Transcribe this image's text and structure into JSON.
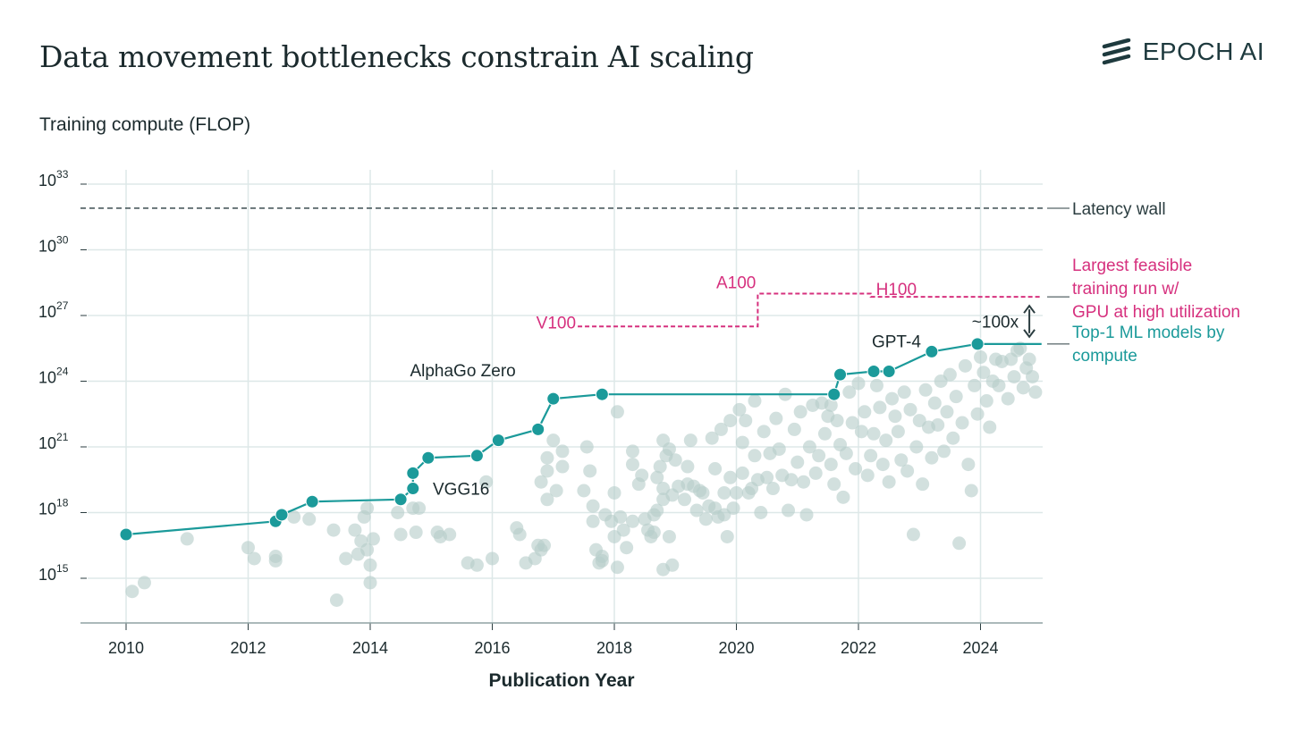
{
  "header": {
    "title": "Data movement bottlenecks constrain AI scaling",
    "brand": "EPOCH AI"
  },
  "colors": {
    "teal": "#1b9a9a",
    "scatter": "#b6cdc9",
    "magenta": "#d6307e",
    "dark": "#2b3d40",
    "grid": "#dde8e8"
  },
  "chart_data": {
    "type": "scatter",
    "title": "Data movement bottlenecks constrain AI scaling",
    "ylabel": "Training compute (FLOP)",
    "xlabel": "Publication Year",
    "x_ticks": [
      2010,
      2012,
      2014,
      2016,
      2018,
      2020,
      2022,
      2024
    ],
    "x_tick_labels": [
      "2010",
      "2012",
      "2014",
      "2016",
      "2018",
      "2020",
      "2022",
      "2024"
    ],
    "xlim": [
      2009.3,
      2025.0
    ],
    "y_log10_ticks": [
      15,
      18,
      21,
      24,
      27,
      30,
      33
    ],
    "y_tick_base": "10",
    "ylim_log10": [
      13,
      34
    ],
    "reference_lines": [
      {
        "name": "Latency wall",
        "label": "Latency wall",
        "y_log10": 31.9,
        "style": "dashed"
      }
    ],
    "gpu_lines": {
      "label_lines": [
        "Largest feasible",
        " training run w/",
        "GPU at high utilization"
      ],
      "segments": [
        {
          "name": "V100",
          "x_start": 2017.4,
          "x_end": 2020.35,
          "y_log10": 26.5
        },
        {
          "name": "A100",
          "x_start": 2020.35,
          "x_end": 2022.2,
          "y_log10": 28.0
        },
        {
          "name": "H100",
          "x_start": 2022.2,
          "x_end": 2025.0,
          "y_log10": 27.85
        }
      ]
    },
    "frontier_series": {
      "name": "Top-1 ML models by compute",
      "label_lines": [
        "Top-1 ML models by",
        " compute"
      ],
      "points": [
        {
          "x": 2010.0,
          "y": 17.0
        },
        {
          "x": 2012.45,
          "y": 17.6
        },
        {
          "x": 2012.55,
          "y": 17.9
        },
        {
          "x": 2013.05,
          "y": 18.5
        },
        {
          "x": 2014.5,
          "y": 18.6
        },
        {
          "x": 2014.7,
          "y": 19.1
        },
        {
          "x": 2014.7,
          "y": 19.8
        },
        {
          "x": 2014.95,
          "y": 20.5
        },
        {
          "x": 2015.75,
          "y": 20.6
        },
        {
          "x": 2016.1,
          "y": 21.3
        },
        {
          "x": 2016.75,
          "y": 21.8
        },
        {
          "x": 2017.0,
          "y": 23.2
        },
        {
          "x": 2017.8,
          "y": 23.4
        },
        {
          "x": 2021.6,
          "y": 23.4
        },
        {
          "x": 2021.7,
          "y": 24.3
        },
        {
          "x": 2022.25,
          "y": 24.45
        },
        {
          "x": 2022.5,
          "y": 24.45
        },
        {
          "x": 2023.2,
          "y": 25.35
        },
        {
          "x": 2023.95,
          "y": 25.7
        },
        {
          "x": 2025.0,
          "y": 25.7,
          "marker": false
        }
      ]
    },
    "scatter_series": {
      "name": "ML models",
      "points": [
        {
          "x": 2010.1,
          "y": 14.4
        },
        {
          "x": 2010.3,
          "y": 14.8
        },
        {
          "x": 2011.0,
          "y": 16.8
        },
        {
          "x": 2012.0,
          "y": 16.4
        },
        {
          "x": 2012.1,
          "y": 15.9
        },
        {
          "x": 2012.45,
          "y": 16.0
        },
        {
          "x": 2012.45,
          "y": 15.8
        },
        {
          "x": 2012.75,
          "y": 17.8
        },
        {
          "x": 2013.0,
          "y": 17.7
        },
        {
          "x": 2013.4,
          "y": 17.2
        },
        {
          "x": 2013.45,
          "y": 14.0
        },
        {
          "x": 2013.6,
          "y": 15.9
        },
        {
          "x": 2013.75,
          "y": 17.2
        },
        {
          "x": 2013.8,
          "y": 16.1
        },
        {
          "x": 2013.85,
          "y": 16.7
        },
        {
          "x": 2013.9,
          "y": 17.8
        },
        {
          "x": 2013.95,
          "y": 18.2
        },
        {
          "x": 2013.95,
          "y": 16.3
        },
        {
          "x": 2014.0,
          "y": 15.6
        },
        {
          "x": 2014.0,
          "y": 14.8
        },
        {
          "x": 2014.05,
          "y": 16.8
        },
        {
          "x": 2014.45,
          "y": 18.0
        },
        {
          "x": 2014.5,
          "y": 17.0
        },
        {
          "x": 2014.7,
          "y": 18.2
        },
        {
          "x": 2014.75,
          "y": 17.1
        },
        {
          "x": 2014.8,
          "y": 18.2
        },
        {
          "x": 2015.1,
          "y": 17.1
        },
        {
          "x": 2015.15,
          "y": 16.9
        },
        {
          "x": 2015.3,
          "y": 17.0
        },
        {
          "x": 2015.6,
          "y": 15.7
        },
        {
          "x": 2015.75,
          "y": 15.6
        },
        {
          "x": 2015.9,
          "y": 19.4
        },
        {
          "x": 2016.0,
          "y": 15.9
        },
        {
          "x": 2016.4,
          "y": 17.3
        },
        {
          "x": 2016.45,
          "y": 17.0
        },
        {
          "x": 2016.55,
          "y": 15.7
        },
        {
          "x": 2016.7,
          "y": 15.9
        },
        {
          "x": 2016.75,
          "y": 16.5
        },
        {
          "x": 2016.8,
          "y": 16.3
        },
        {
          "x": 2016.8,
          "y": 19.4
        },
        {
          "x": 2016.85,
          "y": 16.5
        },
        {
          "x": 2016.9,
          "y": 18.6
        },
        {
          "x": 2016.9,
          "y": 20.5
        },
        {
          "x": 2016.9,
          "y": 19.9
        },
        {
          "x": 2017.0,
          "y": 21.3
        },
        {
          "x": 2017.05,
          "y": 19.0
        },
        {
          "x": 2017.15,
          "y": 20.1
        },
        {
          "x": 2017.15,
          "y": 20.8
        },
        {
          "x": 2017.5,
          "y": 19.0
        },
        {
          "x": 2017.55,
          "y": 21.0
        },
        {
          "x": 2017.6,
          "y": 19.9
        },
        {
          "x": 2017.65,
          "y": 18.3
        },
        {
          "x": 2017.65,
          "y": 17.6
        },
        {
          "x": 2017.7,
          "y": 16.3
        },
        {
          "x": 2017.75,
          "y": 15.7
        },
        {
          "x": 2017.8,
          "y": 15.8
        },
        {
          "x": 2017.8,
          "y": 16.0
        },
        {
          "x": 2017.85,
          "y": 17.9
        },
        {
          "x": 2017.95,
          "y": 17.6
        },
        {
          "x": 2018.0,
          "y": 18.9
        },
        {
          "x": 2018.0,
          "y": 16.9
        },
        {
          "x": 2018.05,
          "y": 15.5
        },
        {
          "x": 2018.05,
          "y": 22.6
        },
        {
          "x": 2018.1,
          "y": 17.8
        },
        {
          "x": 2018.15,
          "y": 17.2
        },
        {
          "x": 2018.2,
          "y": 16.4
        },
        {
          "x": 2018.3,
          "y": 20.8
        },
        {
          "x": 2018.3,
          "y": 20.2
        },
        {
          "x": 2018.3,
          "y": 17.6
        },
        {
          "x": 2018.4,
          "y": 19.3
        },
        {
          "x": 2018.45,
          "y": 19.7
        },
        {
          "x": 2018.5,
          "y": 17.7
        },
        {
          "x": 2018.55,
          "y": 17.2
        },
        {
          "x": 2018.6,
          "y": 16.9
        },
        {
          "x": 2018.65,
          "y": 17.1
        },
        {
          "x": 2018.65,
          "y": 17.9
        },
        {
          "x": 2018.7,
          "y": 18.1
        },
        {
          "x": 2018.7,
          "y": 19.6
        },
        {
          "x": 2018.75,
          "y": 20.1
        },
        {
          "x": 2018.8,
          "y": 18.6
        },
        {
          "x": 2018.8,
          "y": 19.1
        },
        {
          "x": 2018.8,
          "y": 15.4
        },
        {
          "x": 2018.8,
          "y": 21.3
        },
        {
          "x": 2018.85,
          "y": 20.6
        },
        {
          "x": 2018.9,
          "y": 20.9
        },
        {
          "x": 2018.9,
          "y": 16.9
        },
        {
          "x": 2018.95,
          "y": 18.8
        },
        {
          "x": 2018.95,
          "y": 15.6
        },
        {
          "x": 2019.0,
          "y": 20.4
        },
        {
          "x": 2019.05,
          "y": 19.2
        },
        {
          "x": 2019.15,
          "y": 18.6
        },
        {
          "x": 2019.2,
          "y": 19.3
        },
        {
          "x": 2019.2,
          "y": 20.1
        },
        {
          "x": 2019.25,
          "y": 21.3
        },
        {
          "x": 2019.3,
          "y": 19.2
        },
        {
          "x": 2019.35,
          "y": 18.1
        },
        {
          "x": 2019.4,
          "y": 19.0
        },
        {
          "x": 2019.45,
          "y": 18.9
        },
        {
          "x": 2019.5,
          "y": 17.7
        },
        {
          "x": 2019.55,
          "y": 18.3
        },
        {
          "x": 2019.6,
          "y": 21.4
        },
        {
          "x": 2019.65,
          "y": 20.0
        },
        {
          "x": 2019.65,
          "y": 18.2
        },
        {
          "x": 2019.7,
          "y": 17.8
        },
        {
          "x": 2019.75,
          "y": 21.8
        },
        {
          "x": 2019.8,
          "y": 18.9
        },
        {
          "x": 2019.8,
          "y": 17.9
        },
        {
          "x": 2019.85,
          "y": 16.9
        },
        {
          "x": 2019.9,
          "y": 22.2
        },
        {
          "x": 2019.9,
          "y": 19.6
        },
        {
          "x": 2019.95,
          "y": 18.2
        },
        {
          "x": 2020.0,
          "y": 18.9
        },
        {
          "x": 2020.05,
          "y": 22.7
        },
        {
          "x": 2020.1,
          "y": 21.2
        },
        {
          "x": 2020.1,
          "y": 19.8
        },
        {
          "x": 2020.15,
          "y": 22.2
        },
        {
          "x": 2020.2,
          "y": 18.9
        },
        {
          "x": 2020.25,
          "y": 19.1
        },
        {
          "x": 2020.3,
          "y": 23.1
        },
        {
          "x": 2020.3,
          "y": 20.6
        },
        {
          "x": 2020.35,
          "y": 19.5
        },
        {
          "x": 2020.4,
          "y": 18.0
        },
        {
          "x": 2020.45,
          "y": 21.7
        },
        {
          "x": 2020.5,
          "y": 19.6
        },
        {
          "x": 2020.55,
          "y": 20.7
        },
        {
          "x": 2020.6,
          "y": 19.1
        },
        {
          "x": 2020.65,
          "y": 22.3
        },
        {
          "x": 2020.7,
          "y": 20.9
        },
        {
          "x": 2020.75,
          "y": 19.7
        },
        {
          "x": 2020.8,
          "y": 23.4
        },
        {
          "x": 2020.85,
          "y": 18.1
        },
        {
          "x": 2020.9,
          "y": 19.5
        },
        {
          "x": 2020.95,
          "y": 21.8
        },
        {
          "x": 2021.0,
          "y": 20.3
        },
        {
          "x": 2021.05,
          "y": 22.6
        },
        {
          "x": 2021.1,
          "y": 19.4
        },
        {
          "x": 2021.15,
          "y": 17.9
        },
        {
          "x": 2021.2,
          "y": 21.0
        },
        {
          "x": 2021.25,
          "y": 22.9
        },
        {
          "x": 2021.3,
          "y": 19.8
        },
        {
          "x": 2021.35,
          "y": 20.6
        },
        {
          "x": 2021.4,
          "y": 23.0
        },
        {
          "x": 2021.45,
          "y": 21.6
        },
        {
          "x": 2021.5,
          "y": 22.4
        },
        {
          "x": 2021.55,
          "y": 20.2
        },
        {
          "x": 2021.55,
          "y": 22.9
        },
        {
          "x": 2021.6,
          "y": 19.3
        },
        {
          "x": 2021.65,
          "y": 22.2
        },
        {
          "x": 2021.7,
          "y": 21.1
        },
        {
          "x": 2021.75,
          "y": 18.7
        },
        {
          "x": 2021.8,
          "y": 20.7
        },
        {
          "x": 2021.85,
          "y": 23.5
        },
        {
          "x": 2021.9,
          "y": 22.1
        },
        {
          "x": 2021.95,
          "y": 20.0
        },
        {
          "x": 2022.0,
          "y": 23.9
        },
        {
          "x": 2022.05,
          "y": 21.7
        },
        {
          "x": 2022.1,
          "y": 22.6
        },
        {
          "x": 2022.15,
          "y": 19.7
        },
        {
          "x": 2022.2,
          "y": 20.6
        },
        {
          "x": 2022.25,
          "y": 21.6
        },
        {
          "x": 2022.3,
          "y": 23.8
        },
        {
          "x": 2022.35,
          "y": 22.8
        },
        {
          "x": 2022.4,
          "y": 20.2
        },
        {
          "x": 2022.45,
          "y": 21.3
        },
        {
          "x": 2022.5,
          "y": 19.4
        },
        {
          "x": 2022.55,
          "y": 23.2
        },
        {
          "x": 2022.6,
          "y": 22.4
        },
        {
          "x": 2022.65,
          "y": 21.7
        },
        {
          "x": 2022.7,
          "y": 20.4
        },
        {
          "x": 2022.75,
          "y": 23.5
        },
        {
          "x": 2022.8,
          "y": 19.9
        },
        {
          "x": 2022.85,
          "y": 22.7
        },
        {
          "x": 2022.9,
          "y": 17.0
        },
        {
          "x": 2022.95,
          "y": 21.0
        },
        {
          "x": 2023.0,
          "y": 22.2
        },
        {
          "x": 2023.05,
          "y": 19.3
        },
        {
          "x": 2023.1,
          "y": 23.6
        },
        {
          "x": 2023.15,
          "y": 21.9
        },
        {
          "x": 2023.2,
          "y": 20.5
        },
        {
          "x": 2023.25,
          "y": 23.0
        },
        {
          "x": 2023.3,
          "y": 22.0
        },
        {
          "x": 2023.35,
          "y": 24.0
        },
        {
          "x": 2023.4,
          "y": 20.8
        },
        {
          "x": 2023.45,
          "y": 22.6
        },
        {
          "x": 2023.5,
          "y": 24.3
        },
        {
          "x": 2023.55,
          "y": 21.4
        },
        {
          "x": 2023.6,
          "y": 23.3
        },
        {
          "x": 2023.65,
          "y": 16.6
        },
        {
          "x": 2023.7,
          "y": 22.1
        },
        {
          "x": 2023.75,
          "y": 24.7
        },
        {
          "x": 2023.8,
          "y": 20.2
        },
        {
          "x": 2023.85,
          "y": 19.0
        },
        {
          "x": 2023.9,
          "y": 23.8
        },
        {
          "x": 2023.95,
          "y": 22.5
        },
        {
          "x": 2024.0,
          "y": 25.1
        },
        {
          "x": 2024.05,
          "y": 24.4
        },
        {
          "x": 2024.1,
          "y": 23.1
        },
        {
          "x": 2024.15,
          "y": 21.9
        },
        {
          "x": 2024.2,
          "y": 24.0
        },
        {
          "x": 2024.25,
          "y": 25.0
        },
        {
          "x": 2024.3,
          "y": 23.8
        },
        {
          "x": 2024.35,
          "y": 24.9
        },
        {
          "x": 2024.45,
          "y": 23.2
        },
        {
          "x": 2024.5,
          "y": 25.0
        },
        {
          "x": 2024.55,
          "y": 24.2
        },
        {
          "x": 2024.6,
          "y": 25.4
        },
        {
          "x": 2024.65,
          "y": 25.5
        },
        {
          "x": 2024.7,
          "y": 23.7
        },
        {
          "x": 2024.75,
          "y": 24.6
        },
        {
          "x": 2024.8,
          "y": 25.0
        },
        {
          "x": 2024.85,
          "y": 24.2
        },
        {
          "x": 2024.9,
          "y": 23.5
        }
      ]
    },
    "annotations": [
      {
        "text": "VGG16",
        "x": 2014.85,
        "y": 19.1,
        "anchor": "start",
        "dx": 12
      },
      {
        "text": "AlphaGo Zero",
        "x": 2017.0,
        "y": 23.2,
        "anchor": "end",
        "dx": -42,
        "dy": -32
      },
      {
        "text": "GPT-4",
        "x": 2023.2,
        "y": 25.35,
        "anchor": "end",
        "dx": -12,
        "dy": -12
      }
    ],
    "gap_annotation": {
      "text": "~100x",
      "x": 2024.8,
      "y_top_log10": 27.85,
      "y_bottom_log10": 25.7
    }
  }
}
